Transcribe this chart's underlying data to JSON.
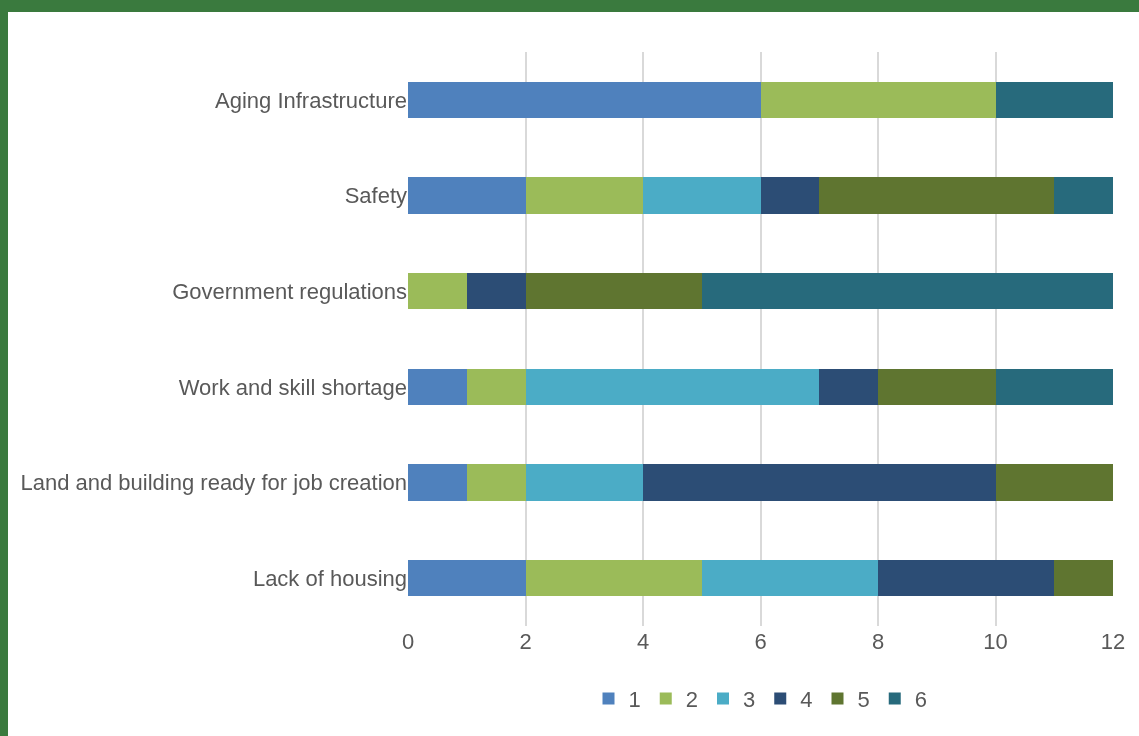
{
  "chart_data": {
    "type": "bar",
    "orientation": "horizontal",
    "stacked": true,
    "categories": [
      "Aging Infrastructure",
      "Safety",
      "Government regulations",
      "Work and skill shortage",
      "Land and building ready for job creation",
      "Lack of housing"
    ],
    "series": [
      {
        "name": "1",
        "color": "#4f81bd",
        "values": [
          6,
          2,
          0,
          1,
          1,
          2
        ]
      },
      {
        "name": "2",
        "color": "#9bbb59",
        "values": [
          4,
          2,
          1,
          1,
          1,
          3
        ]
      },
      {
        "name": "3",
        "color": "#4bacc6",
        "values": [
          0,
          2,
          0,
          5,
          2,
          3
        ]
      },
      {
        "name": "4",
        "color": "#2c4d75",
        "values": [
          0,
          1,
          1,
          1,
          6,
          3
        ]
      },
      {
        "name": "5",
        "color": "#5f7530",
        "values": [
          0,
          4,
          3,
          2,
          2,
          1
        ]
      },
      {
        "name": "6",
        "color": "#276a7c",
        "values": [
          2,
          1,
          7,
          2,
          0,
          0
        ]
      }
    ],
    "xlim": [
      0,
      12
    ],
    "xticks": [
      0,
      2,
      4,
      6,
      8,
      10,
      12
    ],
    "grid": "x",
    "legend": "bottom"
  }
}
